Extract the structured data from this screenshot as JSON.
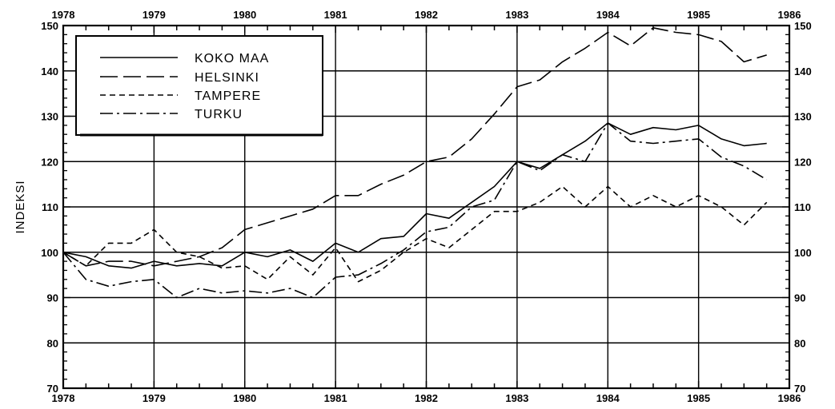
{
  "chart_data": {
    "type": "line",
    "title": "",
    "xlabel": "",
    "ylabel": "INDEKSI",
    "xlim": [
      1978,
      1986
    ],
    "ylim": [
      70,
      150
    ],
    "x_ticks": [
      "1978",
      "1979",
      "1980",
      "1981",
      "1982",
      "1983",
      "1984",
      "1985",
      "1986"
    ],
    "y_ticks": [
      "70",
      "80",
      "90",
      "100",
      "110",
      "120",
      "130",
      "140",
      "150"
    ],
    "grid": true,
    "legend_position": "top-left",
    "x": [
      1978.0,
      1978.25,
      1978.5,
      1978.75,
      1979.0,
      1979.25,
      1979.5,
      1979.75,
      1980.0,
      1980.25,
      1980.5,
      1980.75,
      1981.0,
      1981.25,
      1981.5,
      1981.75,
      1982.0,
      1982.25,
      1982.5,
      1982.75,
      1983.0,
      1983.25,
      1983.5,
      1983.75,
      1984.0,
      1984.25,
      1984.5,
      1984.75,
      1985.0,
      1985.25,
      1985.5,
      1985.75
    ],
    "series": [
      {
        "name": "KOKO MAA",
        "dash": "solid",
        "values": [
          100,
          99,
          97,
          96.5,
          98,
          97,
          97.5,
          97,
          100,
          99,
          100.5,
          98,
          102,
          100,
          103,
          103.5,
          108.5,
          107.5,
          111,
          114.5,
          120,
          118.5,
          121.5,
          124.5,
          128.5,
          126,
          127.5,
          127,
          128,
          125,
          123.5,
          124
        ]
      },
      {
        "name": "HELSINKI",
        "dash": "long-dash",
        "values": [
          100,
          97,
          98,
          98,
          97,
          98,
          99,
          101,
          105,
          106.5,
          108,
          109.5,
          112.5,
          112.5,
          115,
          117,
          120,
          121,
          125,
          130.5,
          136.5,
          138,
          142,
          145,
          148.5,
          145.5,
          149.5,
          148.5,
          148,
          146.5,
          142,
          143.5
        ]
      },
      {
        "name": "TAMPERE",
        "dash": "short-dash",
        "values": [
          100,
          97,
          102,
          102,
          105,
          100,
          99,
          96.5,
          97,
          94,
          99,
          95,
          101,
          93.5,
          96,
          100,
          103,
          101,
          105,
          109,
          109,
          111,
          114.5,
          110,
          114.5,
          110,
          112.5,
          110,
          112.5,
          110,
          106,
          111
        ]
      },
      {
        "name": "TURKU",
        "dash": "dash-dot",
        "values": [
          100,
          94,
          92.5,
          93.5,
          94,
          90,
          92,
          91,
          91.5,
          91,
          92,
          90,
          94.5,
          95,
          97.5,
          100.5,
          104.5,
          105.5,
          110,
          111.5,
          120,
          118,
          121.5,
          120,
          128.5,
          124.5,
          124,
          124.5,
          125,
          121,
          119,
          116
        ]
      }
    ]
  }
}
